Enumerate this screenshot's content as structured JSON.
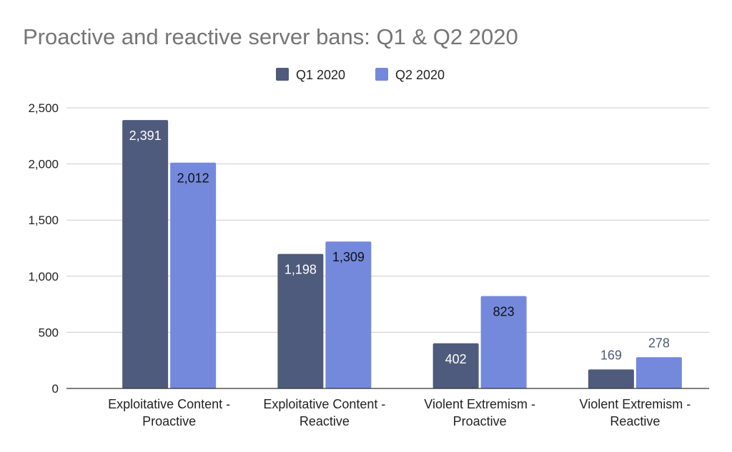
{
  "chart_data": {
    "type": "bar",
    "title": "Proactive and reactive server bans: Q1 & Q2 2020",
    "categories": [
      [
        "Exploitative Content -",
        "Proactive"
      ],
      [
        "Exploitative Content -",
        "Reactive"
      ],
      [
        "Violent Extremism -",
        "Proactive"
      ],
      [
        "Violent Extremism -",
        "Reactive"
      ]
    ],
    "series": [
      {
        "name": "Q1 2020",
        "color": "#4f5b7c",
        "values": [
          2391,
          1198,
          402,
          169
        ]
      },
      {
        "name": "Q2 2020",
        "color": "#7489dc",
        "values": [
          2012,
          1309,
          823,
          278
        ]
      }
    ],
    "data_labels": [
      [
        "2,391",
        "1,198",
        "402",
        "169"
      ],
      [
        "2,012",
        "1,309",
        "823",
        "278"
      ]
    ],
    "y_ticks": [
      {
        "value": 0,
        "label": "0"
      },
      {
        "value": 500,
        "label": "500"
      },
      {
        "value": 1000,
        "label": "1,000"
      },
      {
        "value": 1500,
        "label": "1,500"
      },
      {
        "value": 2000,
        "label": "2,000"
      },
      {
        "value": 2500,
        "label": "2,500"
      }
    ],
    "ylim": [
      0,
      2500
    ],
    "xlabel": "",
    "ylabel": "",
    "grid": true,
    "legend_position": "top-center"
  }
}
